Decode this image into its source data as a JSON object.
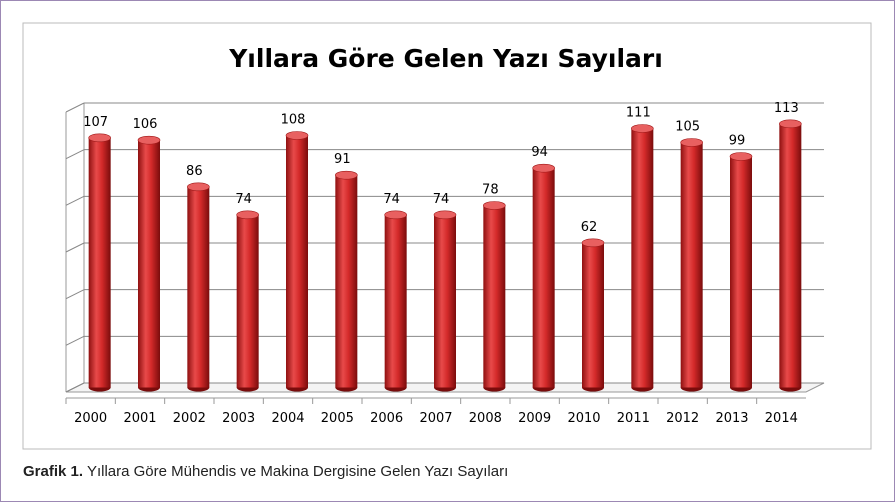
{
  "chart_data": {
    "type": "bar",
    "title": "Yıllara Göre Gelen Yazı Sayıları",
    "categories": [
      "2000",
      "2001",
      "2002",
      "2003",
      "2004",
      "2005",
      "2006",
      "2007",
      "2008",
      "2009",
      "2010",
      "2011",
      "2012",
      "2013",
      "2014"
    ],
    "values": [
      107,
      106,
      86,
      74,
      108,
      91,
      74,
      74,
      78,
      94,
      62,
      111,
      105,
      99,
      113
    ],
    "color": "#d42a2a",
    "ylim": [
      0,
      120
    ],
    "yticks": [
      0,
      20,
      40,
      60,
      80,
      100,
      120
    ],
    "grid": true
  },
  "caption": {
    "label": "Grafik 1.",
    "text": "Yıllara Göre Mühendis ve Makina Dergisine Gelen Yazı Sayıları"
  }
}
